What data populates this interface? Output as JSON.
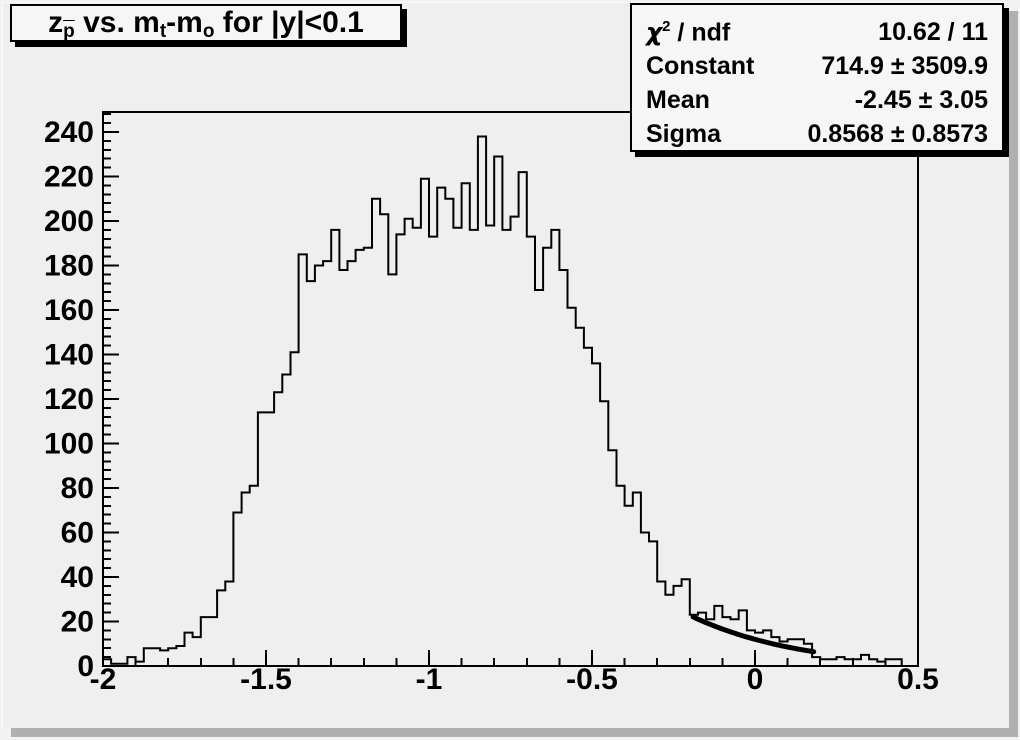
{
  "title": {
    "text": "z_p(bar) vs. m_t-m_o for |y|<0.1",
    "parts": [
      {
        "t": "z"
      },
      {
        "sub": "p",
        "bar": true
      },
      {
        "t": " vs. m"
      },
      {
        "sub": "t"
      },
      {
        "t": "-m"
      },
      {
        "sub": "o"
      },
      {
        "t": " for |y|<0.1"
      }
    ]
  },
  "stats": {
    "rows": [
      {
        "label_parts": [
          {
            "t": "χ",
            "greek": true
          },
          {
            "sup": "2"
          },
          {
            "t": " / ndf"
          }
        ],
        "value": "10.62 / 11"
      },
      {
        "label_parts": [
          {
            "t": "Constant"
          }
        ],
        "value": "714.9 ± 3509.9"
      },
      {
        "label_parts": [
          {
            "t": "Mean"
          }
        ],
        "value": "-2.45 ± 3.05"
      },
      {
        "label_parts": [
          {
            "t": "Sigma"
          }
        ],
        "value": "0.8568 ± 0.8573"
      }
    ]
  },
  "chart_data": {
    "type": "bar",
    "subtype": "step-histogram",
    "title": "z_p(bar) vs. m_t-m_o for |y|<0.1",
    "xlabel": "",
    "ylabel": "",
    "xlim": [
      -2,
      0.5
    ],
    "ylim": [
      0,
      249
    ],
    "grid": false,
    "legend_position": "stats box top-right",
    "x_start": -2.0,
    "bin_width": 0.025,
    "n_bins": 100,
    "values": [
      3,
      1,
      1,
      4,
      2,
      8,
      8,
      7,
      8,
      9,
      15,
      13,
      22,
      22,
      34,
      38,
      69,
      78,
      81,
      114,
      114,
      123,
      131,
      141,
      185,
      173,
      180,
      182,
      196,
      178,
      182,
      187,
      188,
      210,
      203,
      176,
      194,
      201,
      197,
      219,
      193,
      215,
      210,
      197,
      217,
      196,
      238,
      198,
      229,
      196,
      202,
      222,
      193,
      169,
      188,
      196,
      178,
      161,
      152,
      143,
      136,
      119,
      97,
      81,
      72,
      78,
      60,
      56,
      38,
      32,
      36,
      39,
      23,
      24,
      21,
      27,
      22,
      21,
      25,
      16,
      15,
      16,
      13,
      11,
      12,
      12,
      10,
      4,
      3,
      3,
      4,
      3,
      3,
      5,
      3,
      2,
      3,
      3,
      0,
      0
    ],
    "x_tick_values": [
      -2,
      -1.5,
      -1,
      -0.5,
      0,
      0.5
    ],
    "x_tick_labels": [
      "-2",
      "-1.5",
      "-1",
      "-0.5",
      "0",
      "0.5"
    ],
    "x_minor_step": 0.1,
    "y_tick_step": 20,
    "y_tick_max_label": 240,
    "y_minor_step": 4,
    "y_tick_labels": [
      "0",
      "20",
      "40",
      "60",
      "80",
      "100",
      "120",
      "140",
      "160",
      "180",
      "200",
      "220",
      "240"
    ],
    "fit": {
      "type": "gaussian",
      "constant": 714.9,
      "mean": -2.45,
      "sigma": 0.8568,
      "draw_range": [
        -0.19,
        0.18
      ]
    }
  },
  "colors": {
    "canvas_bg": "#efefef",
    "box_bg": "#f6f6f6",
    "line": "#000000",
    "frame": "#000000",
    "canvas_shadow": "#b0b0b0",
    "box_shadow": "#000000"
  }
}
